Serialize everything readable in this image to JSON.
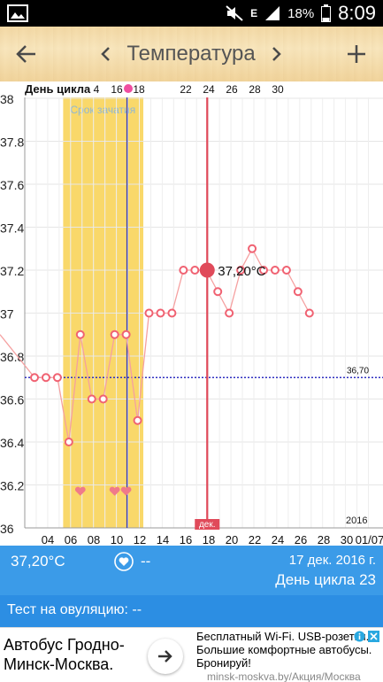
{
  "status_bar": {
    "battery": "18%",
    "time": "8:09",
    "network_letter": "E"
  },
  "header": {
    "back_icon": "arrow-left-icon",
    "prev_icon": "chevron-left-icon",
    "title": "Температура",
    "next_icon": "chevron-right-icon",
    "add_icon": "plus-icon"
  },
  "chart": {
    "top_label": "День цикла",
    "fertile_label": "Срок зачатия",
    "year_label": "2016",
    "month_marker": "дек.",
    "coverline_label": "36,70",
    "selected_label": "37,20°C",
    "colors": {
      "fertile": "#f9d86a",
      "line": "#f5a0a0",
      "point": "#f06272",
      "selected_line": "#e04a5a",
      "ovulation_line": "#3a3aa8",
      "coverline": "#3030c0"
    }
  },
  "chart_data": {
    "type": "line",
    "title": "Температура",
    "ylim": [
      36,
      38
    ],
    "y_ticks": [
      "38",
      "37.8",
      "37.6",
      "37.4",
      "37.2",
      "37",
      "36.8",
      "36.6",
      "36.4",
      "36.2",
      "36"
    ],
    "x_ticks": [
      "04",
      "06",
      "08",
      "10",
      "12",
      "14",
      "16",
      "18",
      "20",
      "22",
      "24",
      "26",
      "28",
      "30",
      "01/07"
    ],
    "cycle_day_ticks": [
      "4",
      "16",
      "18",
      "22",
      "24",
      "26",
      "28",
      "30"
    ],
    "coverline": 36.7,
    "fertile_window_days": [
      4,
      10
    ],
    "ovulation_day": 9,
    "selected_day": 16,
    "selected_value": 37.2,
    "heart_days": [
      5,
      8,
      9
    ],
    "points": [
      {
        "day": 1,
        "value": 36.7
      },
      {
        "day": 2,
        "value": 36.7
      },
      {
        "day": 3,
        "value": 36.7
      },
      {
        "day": 4,
        "value": 36.4
      },
      {
        "day": 5,
        "value": 36.9
      },
      {
        "day": 6,
        "value": 36.6
      },
      {
        "day": 7,
        "value": 36.6
      },
      {
        "day": 8,
        "value": 36.9
      },
      {
        "day": 9,
        "value": 36.9
      },
      {
        "day": 10,
        "value": 36.5
      },
      {
        "day": 11,
        "value": 37.0
      },
      {
        "day": 12,
        "value": 37.0
      },
      {
        "day": 13,
        "value": 37.0
      },
      {
        "day": 14,
        "value": 37.2
      },
      {
        "day": 15,
        "value": 37.2
      },
      {
        "day": 16,
        "value": 37.2
      },
      {
        "day": 17,
        "value": 37.1
      },
      {
        "day": 18,
        "value": 37.0
      },
      {
        "day": 19,
        "value": 37.2
      },
      {
        "day": 20,
        "value": 37.3
      },
      {
        "day": 21,
        "value": 37.2
      },
      {
        "day": 22,
        "value": 37.2
      },
      {
        "day": 23,
        "value": 37.2
      },
      {
        "day": 24,
        "value": 37.1
      },
      {
        "day": 25,
        "value": 37.0
      }
    ]
  },
  "info": {
    "temperature": "37,20°C",
    "heart_icon": "heart-outline-icon",
    "intercourse": "--",
    "date": "17 дек. 2016 г.",
    "cycle_day": "День цикла 23"
  },
  "ovulation_test": {
    "label": "Тест на овуляцию: --"
  },
  "ad": {
    "headline": "Автобус Гродно-Минск-Москва.",
    "body": "Бесплатный Wi-Fi. USB-розетки. Большие комфортные автобусы. Бронируй!",
    "url": "minsk-moskva.by/Акция/Москва"
  }
}
